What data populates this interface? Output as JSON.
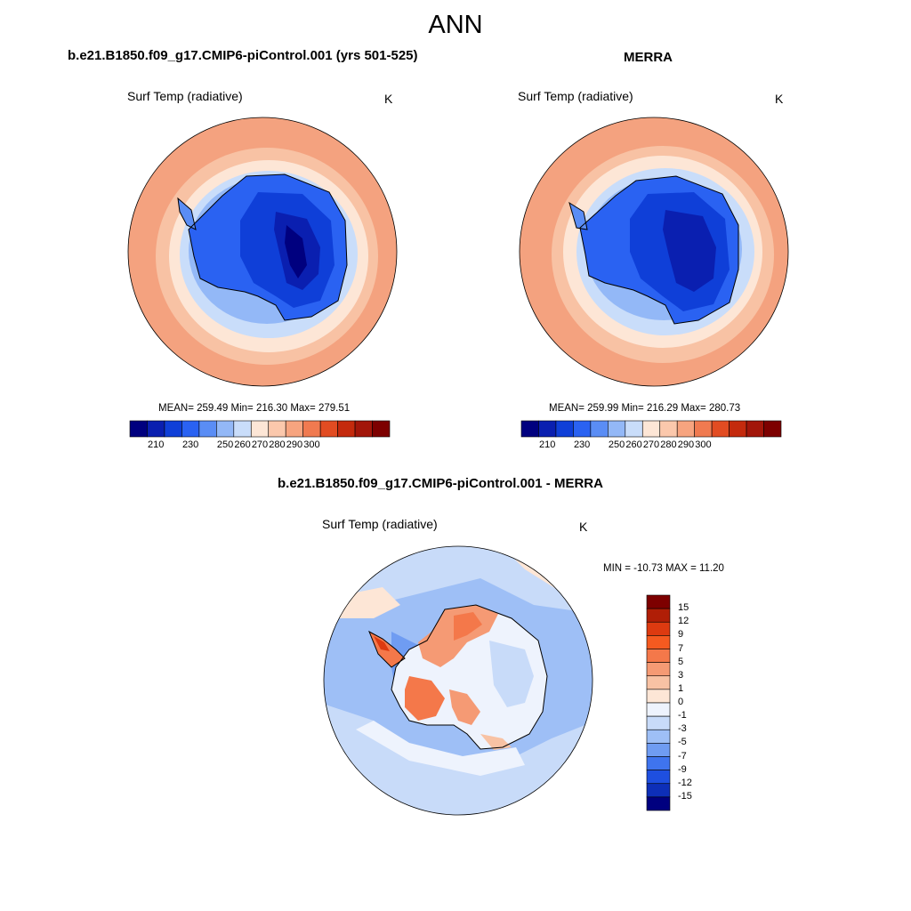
{
  "title": "ANN",
  "panels": [
    {
      "header": "b.e21.B1850.f09_g17.CMIP6-piControl.001 (yrs 501-525)",
      "variable": "Surf Temp (radiative)",
      "units": "K",
      "stats": "MEAN= 259.49  Min= 216.30  Max= 279.51"
    },
    {
      "header": "MERRA",
      "variable": "Surf Temp (radiative)",
      "units": "K",
      "stats": "MEAN= 259.99  Min= 216.29  Max= 280.73"
    },
    {
      "header": "b.e21.B1850.f09_g17.CMIP6-piControl.001 - MERRA",
      "variable": "Surf Temp (radiative)",
      "units": "K",
      "stats": "MIN = -10.73 MAX =  11.20"
    }
  ],
  "abs_colorbar": {
    "labels": [
      "210",
      "230",
      "250",
      "260",
      "270",
      "280",
      "290",
      "300"
    ],
    "colors": [
      "#00007f",
      "#0a1fb0",
      "#0f3fd8",
      "#2a62f2",
      "#5a8df5",
      "#93b8f7",
      "#c9ddfa",
      "#fde6d6",
      "#fbc8ac",
      "#f7a47f",
      "#f07a50",
      "#e24c22",
      "#c42a0d",
      "#a2160a",
      "#7d0000"
    ]
  },
  "diff_colorbar": {
    "labels": [
      "15",
      "12",
      "9",
      "7",
      "5",
      "3",
      "1",
      "0",
      "-1",
      "-3",
      "-5",
      "-7",
      "-9",
      "-12",
      "-15"
    ],
    "colors": [
      "#7d0000",
      "#b01e06",
      "#dd3a10",
      "#f55a20",
      "#f4784a",
      "#f59a74",
      "#f8c2a4",
      "#fde6d6",
      "#eef3fd",
      "#c8dbf9",
      "#9ebff6",
      "#6f9cf2",
      "#3f74ee",
      "#1e4fe0",
      "#0d2fb8",
      "#00007f"
    ]
  }
}
